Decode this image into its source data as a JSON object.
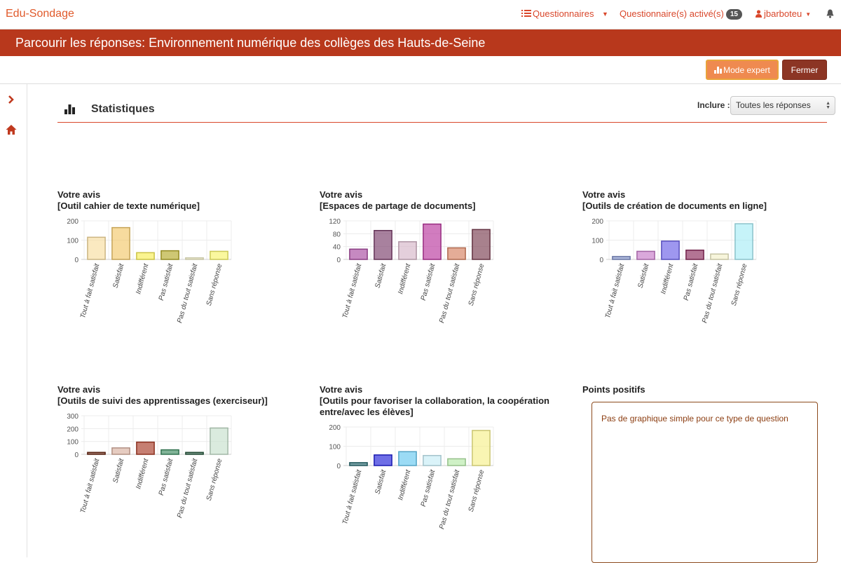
{
  "app": {
    "brand": "Edu-Sondage"
  },
  "nav": {
    "questionnaires": "Questionnaires",
    "active": "Questionnaire(s) activé(s)",
    "active_count": "15",
    "user": "jbarboteu"
  },
  "page": {
    "title": "Parcourir les réponses: Environnement numérique des collèges des Hauts-de-Seine"
  },
  "toolbar": {
    "expert_label": "Mode expert",
    "close_label": "Fermer"
  },
  "stats": {
    "title": "Statistiques",
    "include_label": "Inclure :",
    "include_value": "Toutes les réponses"
  },
  "categories": [
    "Tout à fait satisfait",
    "Satisfait",
    "Indifférent",
    "Pas satisfait",
    "Pas du tout satisfait",
    "Sans réponse"
  ],
  "chart_data": [
    {
      "type": "bar",
      "title": "Votre avis",
      "subtitle": "[Outil cahier de texte numérique]",
      "categories": [
        "Tout à fait satisfait",
        "Satisfait",
        "Indifférent",
        "Pas satisfait",
        "Pas du tout satisfait",
        "Sans réponse"
      ],
      "values": [
        115,
        165,
        35,
        45,
        8,
        42
      ],
      "ylim": [
        0,
        200
      ],
      "yticks": [
        0,
        100,
        200
      ],
      "colors": [
        "#f7dd9e",
        "#f2c86a",
        "#f7ee55",
        "#b4a92a",
        "#f2efc8",
        "#f7f56a"
      ]
    },
    {
      "type": "bar",
      "title": "Votre avis",
      "subtitle": "[Espaces de partage de documents]",
      "categories": [
        "Tout à fait satisfait",
        "Satisfait",
        "Indifférent",
        "Pas satisfait",
        "Pas du tout satisfait",
        "Sans réponse"
      ],
      "values": [
        32,
        90,
        55,
        110,
        36,
        93
      ],
      "ylim": [
        0,
        120
      ],
      "yticks": [
        0,
        40,
        80,
        120
      ],
      "colors": [
        "#a84aa0",
        "#7a3e6a",
        "#d6b6c8",
        "#b8369c",
        "#d68060",
        "#7a3e50"
      ]
    },
    {
      "type": "bar",
      "title": "Votre avis",
      "subtitle": "[Outils de création de documents en ligne]",
      "categories": [
        "Tout à fait satisfait",
        "Satisfait",
        "Indifférent",
        "Pas satisfait",
        "Pas du tout satisfait",
        "Sans réponse"
      ],
      "values": [
        15,
        42,
        95,
        48,
        28,
        185
      ],
      "ylim": [
        0,
        200
      ],
      "yticks": [
        0,
        100,
        200
      ],
      "colors": [
        "#8090c8",
        "#c67ac8",
        "#6a60e6",
        "#8a2a5a",
        "#f2efc8",
        "#a8ecf6"
      ]
    },
    {
      "type": "bar",
      "title": "Votre avis",
      "subtitle": "[Outils de suivi des apprentissages (exerciseur)]",
      "categories": [
        "Tout à fait satisfait",
        "Satisfait",
        "Indifférent",
        "Pas satisfait",
        "Pas du tout satisfait",
        "Sans réponse"
      ],
      "values": [
        15,
        50,
        95,
        35,
        15,
        205
      ],
      "ylim": [
        0,
        300
      ],
      "yticks": [
        0,
        100,
        200,
        300
      ],
      "colors": [
        "#6a2a16",
        "#d8b0a0",
        "#a83a26",
        "#3c8a60",
        "#2a5a40",
        "#c6e0cc"
      ]
    },
    {
      "type": "bar",
      "title": "Votre avis",
      "subtitle": "[Outils pour favoriser la collaboration, la coopération",
      "subtitle2": "entre/avec les élèves]",
      "categories": [
        "Tout à fait satisfait",
        "Satisfait",
        "Indifférent",
        "Pas satisfait",
        "Pas du tout satisfait",
        "Sans réponse"
      ],
      "values": [
        15,
        55,
        72,
        52,
        35,
        182
      ],
      "ylim": [
        0,
        200
      ],
      "yticks": [
        0,
        100,
        200
      ],
      "colors": [
        "#2a6a70",
        "#2020d8",
        "#66c8f0",
        "#c6ecf6",
        "#b6eaa8",
        "#f6f08a"
      ]
    }
  ],
  "free_text": {
    "title": "Points positifs",
    "message": "Pas de graphique simple pour ce type de question"
  }
}
